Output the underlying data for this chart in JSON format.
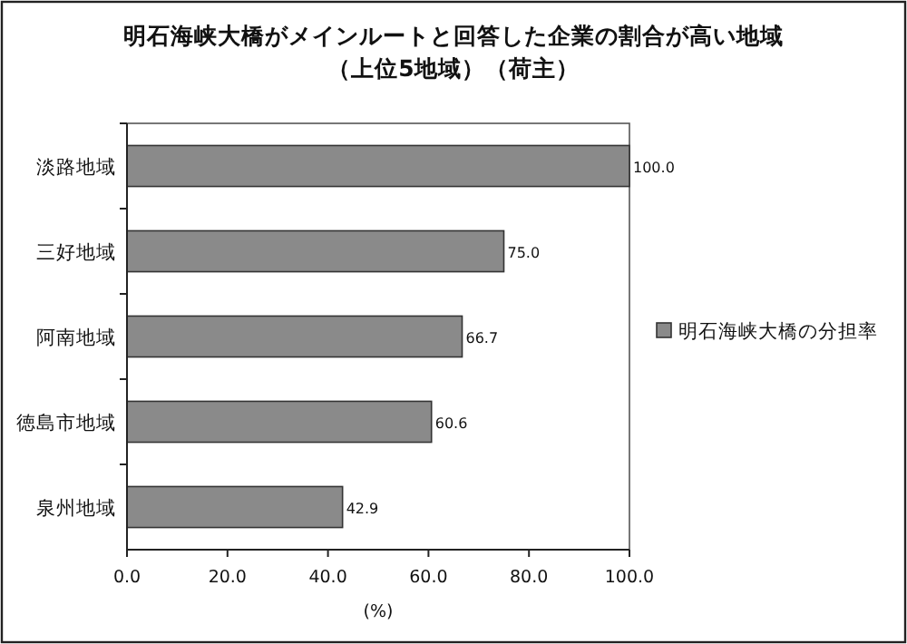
{
  "chart_data": {
    "type": "bar",
    "orientation": "horizontal",
    "title": "明石海峡大橋がメインルートと回答した企業の割合が高い地域",
    "subtitle": "（上位5地域）（荷主）",
    "xlabel": "(%)",
    "categories": [
      "淡路地域",
      "三好地域",
      "阿南地域",
      "徳島市地域",
      "泉州地域"
    ],
    "series": [
      {
        "name": "明石海峡大橋の分担率",
        "color": "#8a8a8a",
        "values": [
          100.0,
          75.0,
          66.7,
          60.6,
          42.9
        ],
        "value_labels": [
          "100.0",
          "75.0",
          "66.7",
          "60.6",
          "42.9"
        ]
      }
    ],
    "xlim": [
      0,
      100
    ],
    "xticks": [
      {
        "value": 0,
        "label": "0.0"
      },
      {
        "value": 20,
        "label": "20.0"
      },
      {
        "value": 40,
        "label": "40.0"
      },
      {
        "value": 60,
        "label": "60.0"
      },
      {
        "value": 80,
        "label": "80.0"
      },
      {
        "value": 100,
        "label": "100.0"
      }
    ],
    "legend": "right"
  }
}
